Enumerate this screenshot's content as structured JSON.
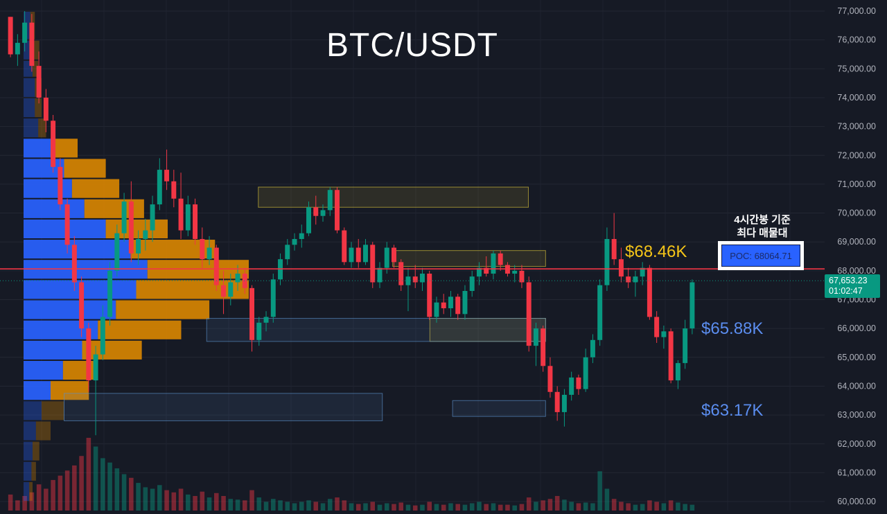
{
  "title": "BTC/USDT",
  "colors": {
    "background": "#161a25",
    "up": "#089981",
    "down": "#f23645",
    "poc_line": "#f23645",
    "supply_zone": "#d8c13a",
    "demand_zone": "#5b8fc7",
    "label_yellow": "#f5c518",
    "label_blue": "#5b8def",
    "volume_profile_blue": "#2962ff",
    "volume_profile_orange": "#e08a00"
  },
  "poc_annotation": {
    "caption_line1": "4시간봉 기준",
    "caption_line2": "최다 매물대",
    "label": "POC: 68064.71"
  },
  "level_labels": {
    "supply": "$68.46K",
    "demand_upper": "$65.88K",
    "demand_lower": "$63.17K"
  },
  "current_price": {
    "price": "67,653.23",
    "countdown": "01:02:47"
  },
  "chart_data": {
    "type": "candlestick",
    "title": "BTC/USDT",
    "ylim": [
      60000,
      77300
    ],
    "y_ticks": [
      "77,000.00",
      "76,000.00",
      "75,000.00",
      "74,000.00",
      "73,000.00",
      "72,000.00",
      "71,000.00",
      "70,000.00",
      "69,000.00",
      "68,000.00",
      "67,000.00",
      "66,000.00",
      "65,000.00",
      "64,000.00",
      "63,000.00",
      "62,000.00",
      "61,000.00",
      "60,000.00"
    ],
    "poc_price": 68064.71,
    "current_price": 67653.23,
    "zones": [
      {
        "kind": "supply",
        "low": 70200,
        "high": 70900,
        "start": 0.365,
        "end": 0.757
      },
      {
        "kind": "supply",
        "low": 68150,
        "high": 68700,
        "start": 0.56,
        "end": 0.782
      },
      {
        "kind": "supply",
        "low": 65550,
        "high": 66350,
        "start": 0.614,
        "end": 0.782
      },
      {
        "kind": "demand",
        "low": 65550,
        "high": 66350,
        "start": 0.29,
        "end": 0.782
      },
      {
        "kind": "demand",
        "low": 62800,
        "high": 63750,
        "start": 0.083,
        "end": 0.545
      },
      {
        "kind": "demand",
        "low": 62950,
        "high": 63500,
        "start": 0.647,
        "end": 0.782
      }
    ],
    "volume_profile": [
      {
        "low": 76000,
        "high": 77000,
        "up": 0.6,
        "down": 0.4
      },
      {
        "low": 75300,
        "high": 76000,
        "up": 0.8,
        "down": 0.6
      },
      {
        "low": 74700,
        "high": 75300,
        "up": 0.8,
        "down": 0.5
      },
      {
        "low": 74000,
        "high": 74700,
        "up": 1.0,
        "down": 0.6
      },
      {
        "low": 73300,
        "high": 74000,
        "up": 1.0,
        "down": 0.6
      },
      {
        "low": 72600,
        "high": 73300,
        "up": 1.3,
        "down": 0.7
      },
      {
        "low": 71900,
        "high": 72600,
        "up": 2.4,
        "down": 2.4
      },
      {
        "low": 71200,
        "high": 71900,
        "up": 3.6,
        "down": 3.7
      },
      {
        "low": 70500,
        "high": 71200,
        "up": 4.3,
        "down": 4.2
      },
      {
        "low": 69800,
        "high": 70500,
        "up": 5.4,
        "down": 5.3
      },
      {
        "low": 69100,
        "high": 69800,
        "up": 7.3,
        "down": 5.5
      },
      {
        "low": 68400,
        "high": 69100,
        "up": 9.5,
        "down": 7.5
      },
      {
        "low": 67700,
        "high": 68400,
        "up": 11.0,
        "down": 9.0
      },
      {
        "low": 67000,
        "high": 67700,
        "up": 10.0,
        "down": 10.0
      },
      {
        "low": 66300,
        "high": 67000,
        "up": 8.2,
        "down": 8.3
      },
      {
        "low": 65600,
        "high": 66300,
        "up": 6.6,
        "down": 7.4
      },
      {
        "low": 64900,
        "high": 65600,
        "up": 5.2,
        "down": 5.3
      },
      {
        "low": 64200,
        "high": 64900,
        "up": 3.5,
        "down": 3.0
      },
      {
        "low": 63500,
        "high": 64200,
        "up": 2.4,
        "down": 3.4
      },
      {
        "low": 62800,
        "high": 63500,
        "up": 1.6,
        "down": 2.0
      },
      {
        "low": 62100,
        "high": 62800,
        "up": 1.1,
        "down": 1.3
      },
      {
        "low": 61400,
        "high": 62100,
        "up": 0.8,
        "down": 0.6
      },
      {
        "low": 60700,
        "high": 61400,
        "up": 0.7,
        "down": 0.4
      },
      {
        "low": 60000,
        "high": 60700,
        "up": 0.5,
        "down": 0.3
      }
    ],
    "candles": [
      [
        76800,
        76800,
        75400,
        75500
      ],
      [
        75500,
        76200,
        75100,
        75900
      ],
      [
        75900,
        77000,
        75600,
        76600
      ],
      [
        76600,
        76900,
        74900,
        75100
      ],
      [
        75100,
        75600,
        73800,
        74000
      ],
      [
        74000,
        74300,
        72800,
        73200
      ],
      [
        73200,
        73400,
        71400,
        71600
      ],
      [
        71600,
        71900,
        70100,
        70300
      ],
      [
        70300,
        70500,
        68600,
        68900
      ],
      [
        68900,
        69200,
        67300,
        67600
      ],
      [
        67600,
        67800,
        65700,
        66000
      ],
      [
        66000,
        66200,
        63800,
        64200
      ],
      [
        64200,
        65400,
        62300,
        65100
      ],
      [
        65100,
        66800,
        64900,
        66400
      ],
      [
        66400,
        68300,
        66100,
        68000
      ],
      [
        68000,
        69600,
        67800,
        69300
      ],
      [
        69300,
        70700,
        69000,
        70400
      ],
      [
        70400,
        71100,
        68300,
        68600
      ],
      [
        68600,
        69400,
        68200,
        69100
      ],
      [
        69100,
        69800,
        68700,
        69400
      ],
      [
        69400,
        70600,
        69000,
        70300
      ],
      [
        70300,
        71900,
        70100,
        71500
      ],
      [
        71500,
        72200,
        70800,
        71100
      ],
      [
        71100,
        71500,
        70200,
        70500
      ],
      [
        70500,
        71400,
        69100,
        69400
      ],
      [
        69400,
        70600,
        69200,
        70300
      ],
      [
        70300,
        70500,
        68900,
        69100
      ],
      [
        69100,
        69500,
        68100,
        68400
      ],
      [
        68400,
        69200,
        68200,
        68800
      ],
      [
        68800,
        68900,
        67300,
        67500
      ],
      [
        67500,
        68000,
        66500,
        67100
      ],
      [
        67100,
        67900,
        66800,
        67600
      ],
      [
        67600,
        68200,
        67300,
        67900
      ],
      [
        67900,
        68100,
        67200,
        67400
      ],
      [
        67400,
        67500,
        65200,
        65600
      ],
      [
        65600,
        66400,
        65400,
        66200
      ],
      [
        66200,
        66600,
        65900,
        66400
      ],
      [
        66400,
        67900,
        66200,
        67700
      ],
      [
        67700,
        68600,
        67500,
        68400
      ],
      [
        68400,
        69100,
        68200,
        68900
      ],
      [
        68900,
        69300,
        68700,
        69100
      ],
      [
        69100,
        69600,
        68800,
        69300
      ],
      [
        69300,
        70400,
        69200,
        70200
      ],
      [
        70200,
        70600,
        69600,
        69900
      ],
      [
        69900,
        70300,
        69700,
        70100
      ],
      [
        70100,
        70900,
        69900,
        70800
      ],
      [
        70800,
        70900,
        69300,
        69400
      ],
      [
        69400,
        69500,
        68200,
        68300
      ],
      [
        68300,
        69000,
        68100,
        68800
      ],
      [
        68800,
        69100,
        68100,
        68300
      ],
      [
        68300,
        69100,
        68200,
        68900
      ],
      [
        68900,
        69000,
        67400,
        67600
      ],
      [
        67600,
        68300,
        67400,
        68100
      ],
      [
        68100,
        69000,
        67900,
        68800
      ],
      [
        68800,
        68900,
        68100,
        68300
      ],
      [
        68300,
        68400,
        67300,
        67500
      ],
      [
        67500,
        68100,
        66600,
        67800
      ],
      [
        67800,
        68200,
        67400,
        67600
      ],
      [
        67600,
        68100,
        67300,
        67900
      ],
      [
        67900,
        68000,
        66300,
        66400
      ],
      [
        66400,
        67100,
        66200,
        66900
      ],
      [
        66900,
        67200,
        66500,
        66700
      ],
      [
        66700,
        67300,
        66400,
        67100
      ],
      [
        67100,
        67200,
        66300,
        66500
      ],
      [
        66500,
        67500,
        66300,
        67300
      ],
      [
        67300,
        68000,
        67100,
        67800
      ],
      [
        67800,
        68300,
        67500,
        68100
      ],
      [
        68100,
        68500,
        67800,
        67900
      ],
      [
        67900,
        68700,
        67700,
        68600
      ],
      [
        68600,
        68700,
        68000,
        68200
      ],
      [
        68200,
        68300,
        67800,
        67900
      ],
      [
        67900,
        68200,
        67600,
        68000
      ],
      [
        68000,
        68200,
        67400,
        67600
      ],
      [
        67600,
        67800,
        65200,
        65400
      ],
      [
        65400,
        66200,
        64700,
        66000
      ],
      [
        66000,
        66100,
        64500,
        64700
      ],
      [
        64700,
        65000,
        63600,
        63800
      ],
      [
        63800,
        64000,
        62800,
        63100
      ],
      [
        63100,
        63900,
        62600,
        63700
      ],
      [
        63700,
        64500,
        63500,
        64300
      ],
      [
        64300,
        64400,
        63700,
        63900
      ],
      [
        63900,
        65300,
        63800,
        65000
      ],
      [
        65000,
        65800,
        64800,
        65600
      ],
      [
        65600,
        67700,
        65400,
        67500
      ],
      [
        67500,
        69500,
        67300,
        69100
      ],
      [
        69100,
        70000,
        68200,
        68400
      ],
      [
        68400,
        68800,
        67600,
        67800
      ],
      [
        67800,
        68100,
        67400,
        67600
      ],
      [
        67600,
        68000,
        67100,
        67800
      ],
      [
        67800,
        68300,
        67500,
        68100
      ],
      [
        68100,
        68200,
        66300,
        66400
      ],
      [
        66400,
        66600,
        65500,
        65700
      ],
      [
        65700,
        66100,
        65300,
        65900
      ],
      [
        65900,
        66000,
        64100,
        64200
      ],
      [
        64200,
        64900,
        63900,
        64800
      ],
      [
        64800,
        66300,
        64600,
        66000
      ],
      [
        66000,
        67700,
        65800,
        67600
      ]
    ],
    "volume": [
      [
        22,
        1
      ],
      [
        14,
        1
      ],
      [
        20,
        1
      ],
      [
        25,
        1
      ],
      [
        36,
        1
      ],
      [
        30,
        1
      ],
      [
        42,
        1
      ],
      [
        48,
        1
      ],
      [
        55,
        1
      ],
      [
        62,
        1
      ],
      [
        75,
        1
      ],
      [
        100,
        1
      ],
      [
        88,
        0
      ],
      [
        72,
        0
      ],
      [
        66,
        0
      ],
      [
        58,
        0
      ],
      [
        50,
        0
      ],
      [
        45,
        1
      ],
      [
        38,
        0
      ],
      [
        32,
        0
      ],
      [
        30,
        0
      ],
      [
        35,
        0
      ],
      [
        28,
        1
      ],
      [
        25,
        1
      ],
      [
        30,
        1
      ],
      [
        22,
        0
      ],
      [
        20,
        1
      ],
      [
        26,
        1
      ],
      [
        18,
        0
      ],
      [
        24,
        1
      ],
      [
        20,
        1
      ],
      [
        16,
        0
      ],
      [
        15,
        0
      ],
      [
        14,
        1
      ],
      [
        28,
        1
      ],
      [
        18,
        0
      ],
      [
        12,
        0
      ],
      [
        16,
        0
      ],
      [
        14,
        0
      ],
      [
        12,
        0
      ],
      [
        10,
        0
      ],
      [
        12,
        0
      ],
      [
        14,
        0
      ],
      [
        12,
        1
      ],
      [
        10,
        0
      ],
      [
        16,
        0
      ],
      [
        18,
        1
      ],
      [
        14,
        1
      ],
      [
        10,
        0
      ],
      [
        9,
        1
      ],
      [
        10,
        0
      ],
      [
        12,
        1
      ],
      [
        8,
        0
      ],
      [
        10,
        0
      ],
      [
        9,
        1
      ],
      [
        11,
        1
      ],
      [
        8,
        0
      ],
      [
        7,
        1
      ],
      [
        8,
        0
      ],
      [
        12,
        1
      ],
      [
        9,
        0
      ],
      [
        8,
        1
      ],
      [
        10,
        0
      ],
      [
        9,
        1
      ],
      [
        8,
        0
      ],
      [
        10,
        0
      ],
      [
        12,
        0
      ],
      [
        9,
        1
      ],
      [
        10,
        0
      ],
      [
        8,
        1
      ],
      [
        8,
        1
      ],
      [
        7,
        0
      ],
      [
        9,
        1
      ],
      [
        18,
        1
      ],
      [
        12,
        0
      ],
      [
        14,
        1
      ],
      [
        16,
        1
      ],
      [
        20,
        1
      ],
      [
        15,
        0
      ],
      [
        12,
        0
      ],
      [
        10,
        1
      ],
      [
        11,
        0
      ],
      [
        10,
        0
      ],
      [
        54,
        0
      ],
      [
        30,
        0
      ],
      [
        16,
        1
      ],
      [
        12,
        1
      ],
      [
        10,
        1
      ],
      [
        8,
        0
      ],
      [
        9,
        0
      ],
      [
        14,
        1
      ],
      [
        12,
        1
      ],
      [
        10,
        0
      ],
      [
        14,
        1
      ],
      [
        11,
        0
      ],
      [
        9,
        0
      ],
      [
        8,
        0
      ]
    ]
  }
}
